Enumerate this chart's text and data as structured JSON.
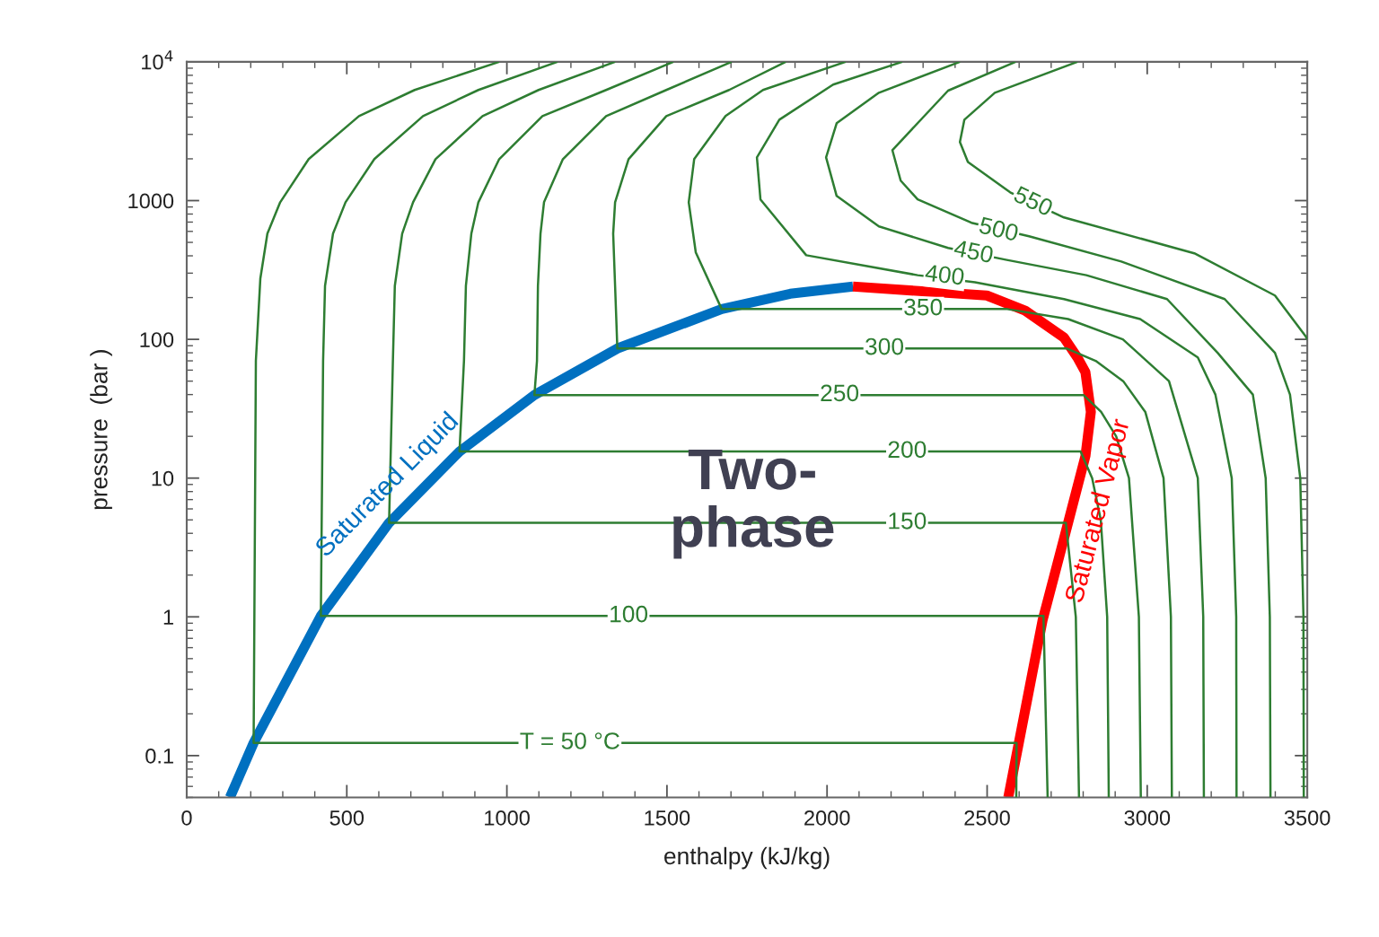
{
  "chart_data": {
    "type": "line",
    "xlabel": "enthalpy (kJ/kg)",
    "ylabel": "pressure  (bar )",
    "log": "y",
    "xlim": [
      0,
      3500
    ],
    "xticks": [
      0,
      500,
      1000,
      1500,
      2000,
      2500,
      3000,
      3500
    ],
    "ylim": [
      0.05,
      10000
    ],
    "yticks": [
      0.1,
      1,
      10,
      100,
      1000,
      {
        "value": 10000,
        "label": "10$^{4}$"
      }
    ],
    "series": [
      {
        "color": "#2e7d32",
        "x": [
          976,
          712,
          538,
          381,
          292,
          252,
          230,
          216,
          209,
          2592,
          2591
        ],
        "values": [
          10000,
          6270,
          4065,
          1990,
          973,
          578,
          275,
          70,
          0.1235,
          0.1235,
          0.05
        ]
      },
      {
        "color": "#2e7d32",
        "x": [
          1158,
          911,
          738,
          586,
          496,
          457,
          432,
          426,
          419,
          2676,
          2689
        ],
        "values": [
          10000,
          6270,
          4065,
          1990,
          973,
          578,
          243,
          70,
          1.014,
          1.014,
          0.05
        ]
      },
      {
        "color": "#2e7d32",
        "x": [
          1338,
          1099,
          924,
          777,
          707,
          673,
          650,
          644,
          632,
          2746,
          2777,
          2787
        ],
        "values": [
          10000,
          6270,
          4065,
          1990,
          973,
          578,
          243,
          70,
          4.76,
          4.76,
          1,
          0.05
        ]
      },
      {
        "color": "#2e7d32",
        "x": [
          1520,
          1310,
          1111,
          976,
          911,
          889,
          872,
          866,
          852,
          2792,
          2828,
          2855,
          2875,
          2880
        ],
        "values": [
          10000,
          6270,
          4065,
          1990,
          973,
          578,
          243,
          70,
          15.55,
          15.55,
          10,
          5,
          1,
          0.05
        ]
      },
      {
        "color": "#2e7d32",
        "x": [
          1702,
          1498,
          1310,
          1175,
          1116,
          1105,
          1097,
          1094,
          1086,
          2801,
          2856,
          2903,
          2943,
          2974,
          2980
        ],
        "values": [
          10000,
          6270,
          4065,
          1990,
          973,
          578,
          243,
          70,
          39.7,
          39.7,
          30,
          20,
          10,
          1,
          0.05
        ]
      },
      {
        "color": "#2e7d32",
        "x": [
          1871,
          1694,
          1498,
          1380,
          1338,
          1332,
          1338,
          1345,
          2749,
          2839,
          2925,
          2994,
          3051,
          3074,
          3077
        ],
        "values": [
          10000,
          6270,
          4065,
          1990,
          973,
          578,
          243,
          85.9,
          85.9,
          70,
          50,
          30,
          10,
          1,
          0.05
        ]
      },
      {
        "color": "#2e7d32",
        "x": [
          2058,
          1800,
          1683,
          1585,
          1568,
          1590,
          1671,
          2563,
          2753,
          2924,
          3068,
          3158,
          3175,
          3177
        ],
        "values": [
          10000,
          6270,
          4065,
          1990,
          973,
          423,
          165.3,
          165.3,
          140,
          100,
          50,
          10,
          1,
          0.05
        ]
      },
      {
        "color": "#2e7d32",
        "x": [
          2235,
          2019,
          1851,
          1781,
          1792,
          1935,
          2283,
          2462,
          2740,
          2978,
          3158,
          3213,
          3264,
          3278,
          3279
        ],
        "values": [
          10000,
          6850,
          3830,
          2050,
          1020,
          404,
          290,
          258,
          195,
          140,
          74,
          40,
          10,
          1,
          0.05
        ]
      },
      {
        "color": "#2e7d32",
        "x": [
          2415,
          2162,
          2030,
          1997,
          2030,
          2162,
          2378,
          2558,
          2810,
          3062,
          3220,
          3330,
          3370,
          3383,
          3385
        ],
        "values": [
          10000,
          5990,
          3610,
          2050,
          1080,
          652,
          456,
          375,
          290,
          195,
          80,
          40,
          10,
          1,
          0.05
        ]
      },
      {
        "color": "#2e7d32",
        "x": [
          2589,
          2378,
          2204,
          2230,
          2283,
          2451,
          2631,
          2919,
          3242,
          3399,
          3446,
          3478,
          3488,
          3489
        ],
        "values": [
          10000,
          6200,
          2310,
          1393,
          1020,
          692,
          553,
          364,
          195,
          80,
          40,
          10,
          1,
          0.05
        ]
      },
      {
        "color": "#2e7d32",
        "x": [
          2782,
          2524,
          2429,
          2415,
          2440,
          2572,
          2740,
          3147,
          3399,
          3494,
          3500
        ],
        "values": [
          10000,
          5990,
          3830,
          2640,
          1900,
          1147,
          756,
          417,
          207,
          106,
          100
        ]
      },
      {
        "name": "Saturated Liquid",
        "color": "#0070c0",
        "x": [
          135,
          209,
          419,
          632,
          852,
          1086,
          1345,
          1671,
          1885,
          2081
        ],
        "values": [
          0.05,
          0.1235,
          1.014,
          4.76,
          15.55,
          39.7,
          85.9,
          165.3,
          213,
          240
        ]
      },
      {
        "name": "Saturated Vapor",
        "color": "#ff0000",
        "x": [
          2081,
          2499,
          2619,
          2740,
          2782,
          2807,
          2824,
          2807,
          2740,
          2673,
          2566
        ],
        "values": [
          240,
          207,
          161,
          103,
          74,
          58,
          30,
          14.4,
          3.66,
          0.94,
          0.05
        ]
      }
    ],
    "annotations": [
      "Two-\nphase",
      {
        "text": "550",
        "x": 2642,
        "y": 964
      },
      {
        "text": "500",
        "x": 2535,
        "y": 604
      },
      {
        "text": "450",
        "x": 2457,
        "y": 417
      },
      {
        "text": "400",
        "x": 2367,
        "y": 283
      },
      {
        "text": "350",
        "x": 2300,
        "y": 165.3
      },
      {
        "text": "300",
        "x": 2179,
        "y": 85.9
      },
      {
        "text": "250",
        "x": 2039,
        "y": 39.7
      },
      {
        "text": "200",
        "x": 2250,
        "y": 15.55
      },
      {
        "text": "150",
        "x": 2250,
        "y": 4.76
      },
      {
        "text": "100",
        "x": 1380,
        "y": 1.014
      },
      {
        "text": "T = 50 °C",
        "x": 1197,
        "y": 0.1235
      }
    ]
  }
}
